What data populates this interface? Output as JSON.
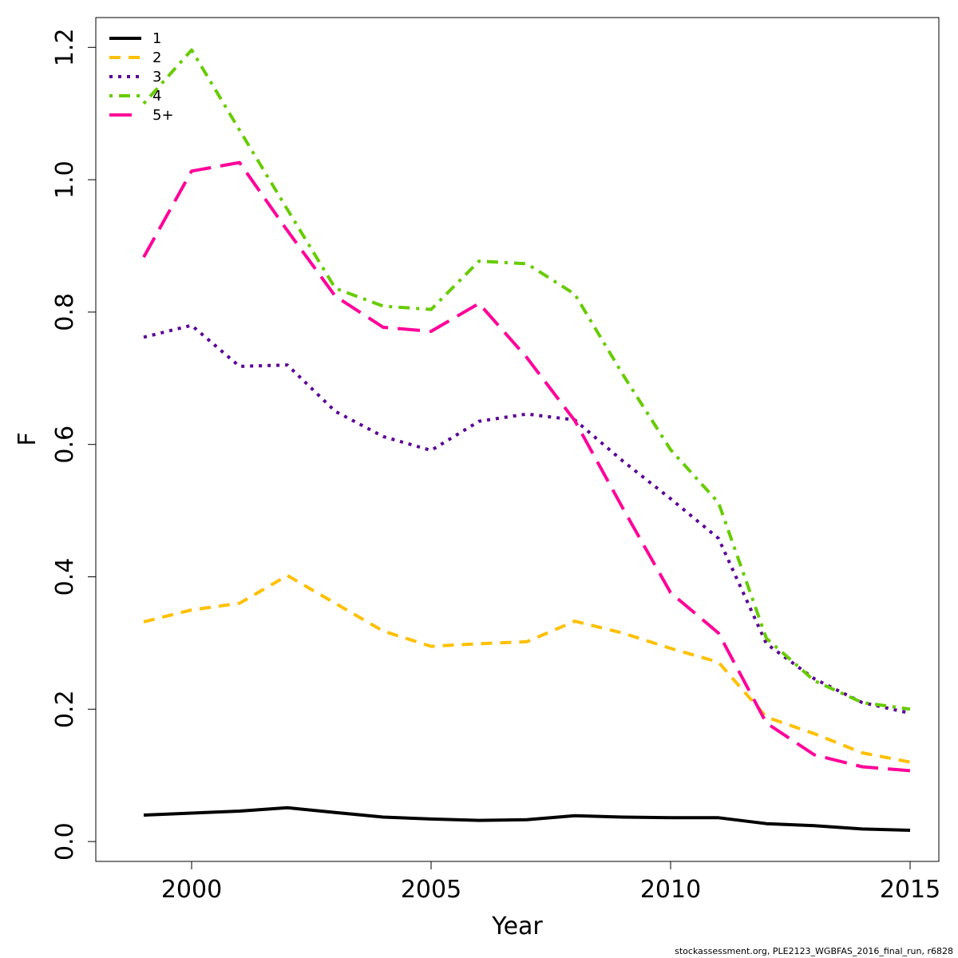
{
  "chart_data": {
    "type": "line",
    "xlabel": "Year",
    "ylabel": "F",
    "xlim": [
      1998,
      2015.6
    ],
    "ylim": [
      -0.03,
      1.245
    ],
    "x_ticks": [
      2000,
      2005,
      2010,
      2015
    ],
    "x_tick_labels": [
      "2000",
      "2005",
      "2010",
      "2015"
    ],
    "y_ticks": [
      0.0,
      0.2,
      0.4,
      0.6,
      0.8,
      1.0,
      1.2
    ],
    "y_tick_labels": [
      "0.0",
      "0.2",
      "0.4",
      "0.6",
      "0.8",
      "1.0",
      "1.2"
    ],
    "legend_position": "top-left",
    "x": [
      1999,
      2000,
      2001,
      2002,
      2003,
      2004,
      2005,
      2006,
      2007,
      2008,
      2009,
      2010,
      2011,
      2012,
      2013,
      2014,
      2015
    ],
    "series": [
      {
        "name": "1",
        "color": "#000000",
        "dash": "solid",
        "values": [
          0.04,
          0.043,
          0.046,
          0.051,
          0.044,
          0.037,
          0.034,
          0.032,
          0.033,
          0.039,
          0.037,
          0.036,
          0.036,
          0.027,
          0.024,
          0.019,
          0.017
        ]
      },
      {
        "name": "2",
        "color": "#FFC000",
        "dash": "dashed",
        "values": [
          0.332,
          0.35,
          0.36,
          0.402,
          0.36,
          0.318,
          0.295,
          0.299,
          0.302,
          0.333,
          0.315,
          0.292,
          0.271,
          0.188,
          0.163,
          0.134,
          0.12
        ]
      },
      {
        "name": "3",
        "color": "#5B0095",
        "dash": "dotted",
        "values": [
          0.762,
          0.78,
          0.718,
          0.72,
          0.65,
          0.612,
          0.591,
          0.635,
          0.646,
          0.637,
          0.575,
          0.518,
          0.458,
          0.299,
          0.246,
          0.21,
          0.194
        ]
      },
      {
        "name": "4",
        "color": "#66CC00",
        "dash": "dotdash",
        "values": [
          1.115,
          1.196,
          1.075,
          0.955,
          0.836,
          0.809,
          0.804,
          0.877,
          0.873,
          0.827,
          0.706,
          0.592,
          0.512,
          0.307,
          0.243,
          0.21,
          0.2
        ]
      },
      {
        "name": "5+",
        "color": "#FF0099",
        "dash": "longdash",
        "values": [
          0.883,
          1.013,
          1.026,
          0.923,
          0.824,
          0.777,
          0.771,
          0.813,
          0.731,
          0.636,
          0.504,
          0.376,
          0.315,
          0.179,
          0.131,
          0.113,
          0.107
        ]
      }
    ]
  },
  "footnote": "stockassessment.org, PLE2123_WGBFAS_2016_final_run, r6828"
}
